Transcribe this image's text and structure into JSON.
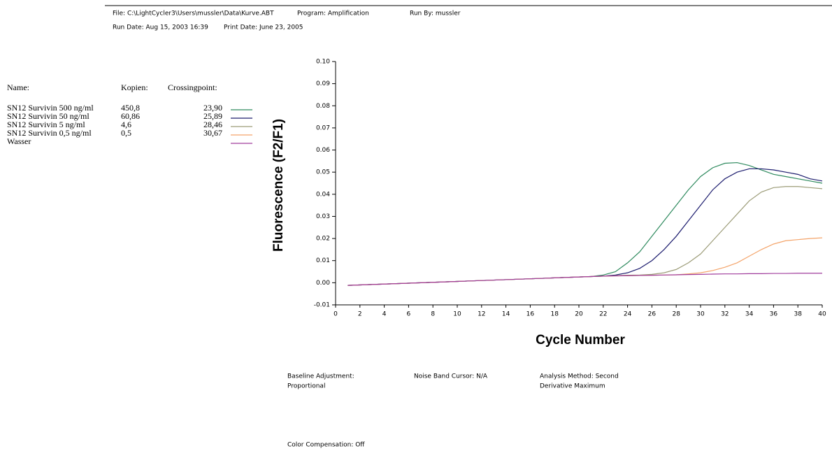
{
  "header": {
    "file": "File: C:\\LightCycler3\\Users\\mussler\\Data\\Kurve.ABT",
    "program": "Program: Amplification",
    "run_by": "Run By: mussler",
    "run_date": "Run Date: Aug 15, 2003 16:39",
    "print_date": "Print Date: June 23, 2005"
  },
  "footer": {
    "baseline": [
      "Baseline Adjustment:",
      "Proportional"
    ],
    "noise_band": "Noise Band Cursor: N/A",
    "analysis": [
      "Analysis Method: Second",
      "Derivative Maximum"
    ],
    "color_compensation": "Color Compensation: Off"
  },
  "chart_data": {
    "type": "line",
    "xlabel": "Cycle Number",
    "ylabel": "Fluorescence (F2/F1)",
    "legend_headers": [
      "Name:",
      "Kopien:",
      "Crossingpoint:"
    ],
    "x": [
      1,
      2,
      3,
      4,
      5,
      6,
      7,
      8,
      9,
      10,
      11,
      12,
      13,
      14,
      15,
      16,
      17,
      18,
      19,
      20,
      21,
      22,
      23,
      24,
      25,
      26,
      27,
      28,
      29,
      30,
      31,
      32,
      33,
      34,
      35,
      36,
      37,
      38,
      39,
      40
    ],
    "xlim": [
      0,
      40
    ],
    "xticks": [
      0,
      2,
      4,
      6,
      8,
      10,
      12,
      14,
      16,
      18,
      20,
      22,
      24,
      26,
      28,
      30,
      32,
      34,
      36,
      38,
      40
    ],
    "ylim": [
      -0.01,
      0.1
    ],
    "yticks": [
      -0.01,
      {
        "value": 0,
        "label": "0.00"
      },
      0.01,
      0.02,
      0.03,
      0.04,
      0.05,
      0.06,
      0.07,
      0.08,
      0.09,
      {
        "value": 0.1,
        "label": "0.10"
      }
    ],
    "grid": false,
    "series": [
      {
        "name": "SN12 Survivin 500 ng/ml",
        "kopien": "450,8",
        "crossingpoint": "23,90",
        "color": "#2e8a5e",
        "values": [
          -0.0012,
          -0.001,
          -0.0008,
          -0.0006,
          -0.0004,
          -0.0002,
          0,
          0.0002,
          0.0004,
          0.0006,
          0.0008,
          0.001,
          0.0012,
          0.0014,
          0.0016,
          0.0018,
          0.002,
          0.0022,
          0.0024,
          0.0026,
          0.0028,
          0.0035,
          0.005,
          0.009,
          0.014,
          0.021,
          0.028,
          0.035,
          0.042,
          0.048,
          0.052,
          0.054,
          0.0543,
          0.053,
          0.051,
          0.049,
          0.048,
          0.047,
          0.046,
          0.045
        ]
      },
      {
        "name": "SN12 Survivin 50 ng/ml",
        "kopien": "60,86",
        "crossingpoint": "25,89",
        "color": "#1c1c6e",
        "values": [
          -0.0012,
          -0.001,
          -0.0008,
          -0.0006,
          -0.0004,
          -0.0002,
          0,
          0.0002,
          0.0004,
          0.0006,
          0.0008,
          0.001,
          0.0012,
          0.0014,
          0.0016,
          0.0018,
          0.002,
          0.0022,
          0.0024,
          0.0026,
          0.0028,
          0.003,
          0.0035,
          0.0045,
          0.0065,
          0.01,
          0.015,
          0.021,
          0.028,
          0.035,
          0.042,
          0.047,
          0.05,
          0.0515,
          0.0515,
          0.051,
          0.05,
          0.049,
          0.047,
          0.046
        ]
      },
      {
        "name": "SN12 Survivin 5 ng/ml",
        "kopien": "4,6",
        "crossingpoint": "28,46",
        "color": "#9c9c78",
        "values": [
          -0.0012,
          -0.001,
          -0.0008,
          -0.0006,
          -0.0004,
          -0.0002,
          0,
          0.0002,
          0.0004,
          0.0006,
          0.0008,
          0.001,
          0.0012,
          0.0014,
          0.0016,
          0.0018,
          0.002,
          0.0022,
          0.0024,
          0.0026,
          0.0028,
          0.003,
          0.0032,
          0.0034,
          0.0035,
          0.0038,
          0.0045,
          0.006,
          0.009,
          0.013,
          0.019,
          0.025,
          0.031,
          0.037,
          0.041,
          0.043,
          0.0435,
          0.0435,
          0.043,
          0.0425
        ]
      },
      {
        "name": "SN12 Survivin 0,5 ng/ml",
        "kopien": "0,5",
        "crossingpoint": "30,67",
        "color": "#f4a46a",
        "values": [
          -0.0012,
          -0.001,
          -0.0008,
          -0.0006,
          -0.0004,
          -0.0002,
          0,
          0.0002,
          0.0004,
          0.0006,
          0.0008,
          0.001,
          0.0012,
          0.0014,
          0.0016,
          0.0018,
          0.002,
          0.0022,
          0.0024,
          0.0026,
          0.0028,
          0.003,
          0.0031,
          0.0032,
          0.0033,
          0.0034,
          0.0035,
          0.0036,
          0.004,
          0.0045,
          0.0055,
          0.007,
          0.009,
          0.012,
          0.015,
          0.0175,
          0.019,
          0.0195,
          0.02,
          0.0203
        ]
      },
      {
        "name": "Wasser",
        "color": "#a03c9c",
        "values": [
          -0.0012,
          -0.001,
          -0.0008,
          -0.0006,
          -0.0004,
          -0.0002,
          0,
          0.0002,
          0.0004,
          0.0006,
          0.0008,
          0.001,
          0.0012,
          0.0014,
          0.0016,
          0.0018,
          0.002,
          0.0022,
          0.0024,
          0.0026,
          0.0028,
          0.003,
          0.0031,
          0.0032,
          0.0033,
          0.0034,
          0.0035,
          0.0036,
          0.0037,
          0.0038,
          0.0039,
          0.004,
          0.004,
          0.0041,
          0.0041,
          0.0042,
          0.0042,
          0.0043,
          0.0043,
          0.0043
        ]
      }
    ]
  }
}
